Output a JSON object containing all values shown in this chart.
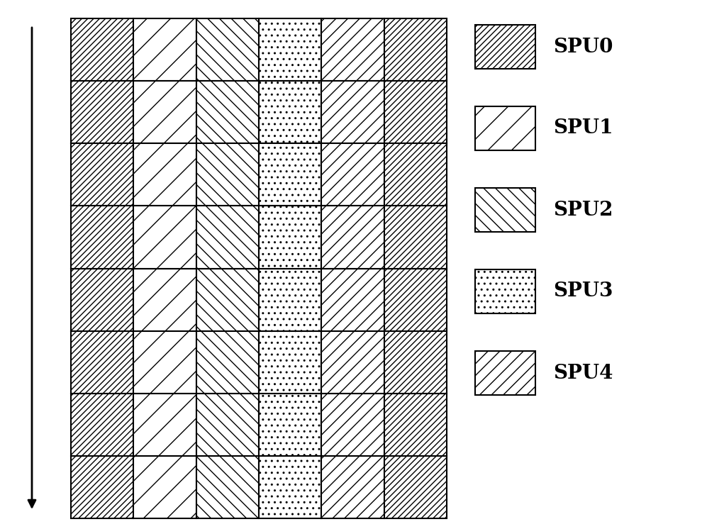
{
  "grid_rows": 8,
  "grid_cols": 6,
  "cell_pattern": [
    [
      0,
      1,
      2,
      3,
      4,
      0
    ],
    [
      0,
      1,
      2,
      3,
      4,
      0
    ],
    [
      0,
      1,
      2,
      3,
      4,
      0
    ],
    [
      0,
      1,
      2,
      3,
      4,
      0
    ],
    [
      0,
      1,
      2,
      3,
      4,
      0
    ],
    [
      0,
      1,
      2,
      3,
      4,
      0
    ],
    [
      0,
      1,
      2,
      3,
      4,
      0
    ],
    [
      0,
      1,
      2,
      3,
      4,
      0
    ]
  ],
  "legend_labels": [
    "SPU0",
    "SPU1",
    "SPU2",
    "SPU3",
    "SPU4"
  ],
  "background_color": "white",
  "font_size": 20,
  "line_width": 1.5
}
